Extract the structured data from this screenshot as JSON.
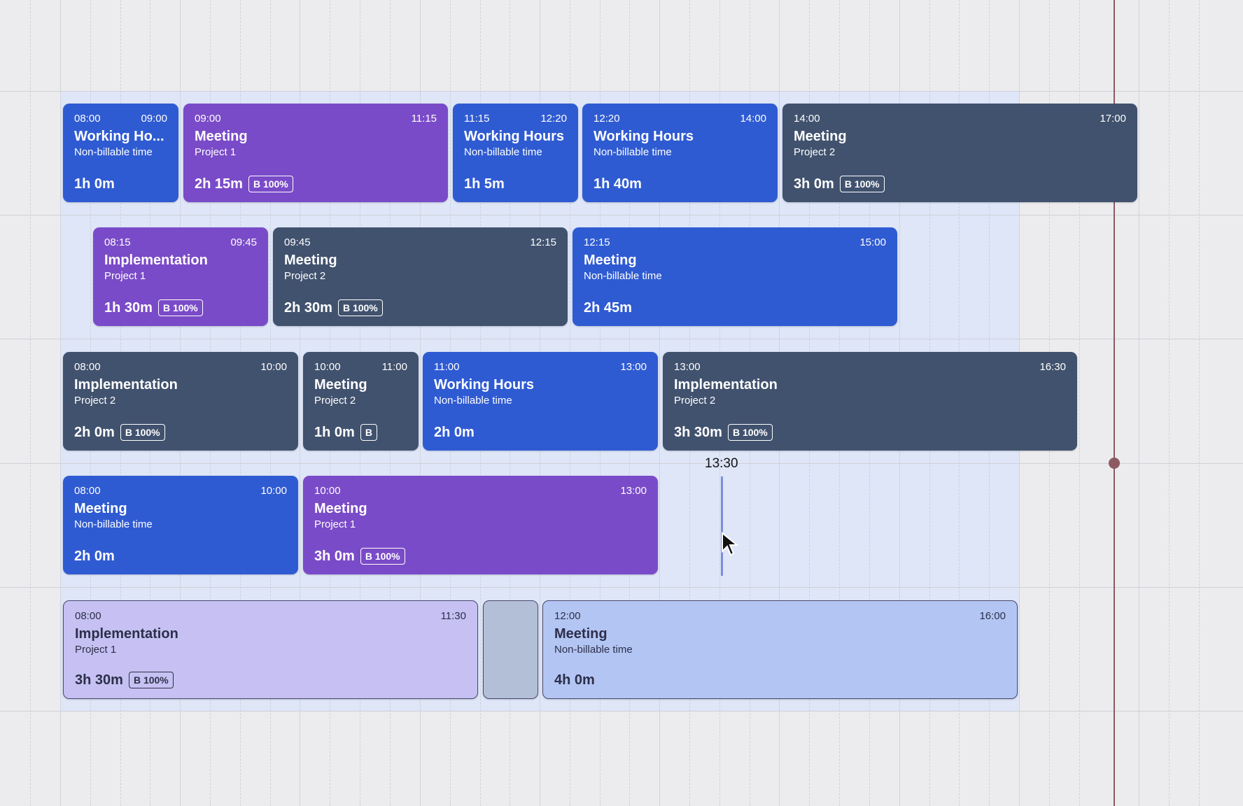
{
  "cursor": {
    "time_label": "13:30"
  },
  "rows": [
    {
      "events": [
        {
          "start": "08:00",
          "end": "09:00",
          "title": "Working Ho...",
          "subtitle": "Non-billable time",
          "duration": "1h 0m",
          "badge": ""
        },
        {
          "start": "09:00",
          "end": "11:15",
          "title": "Meeting",
          "subtitle": "Project 1",
          "duration": "2h 15m",
          "badge": "B 100%"
        },
        {
          "start": "11:15",
          "end": "12:20",
          "title": "Working Hours",
          "subtitle": "Non-billable time",
          "duration": "1h 5m",
          "badge": ""
        },
        {
          "start": "12:20",
          "end": "14:00",
          "title": "Working Hours",
          "subtitle": "Non-billable time",
          "duration": "1h 40m",
          "badge": ""
        },
        {
          "start": "14:00",
          "end": "17:00",
          "title": "Meeting",
          "subtitle": "Project 2",
          "duration": "3h 0m",
          "badge": "B 100%"
        }
      ]
    },
    {
      "events": [
        {
          "start": "08:15",
          "end": "09:45",
          "title": "Implementation",
          "subtitle": "Project 1",
          "duration": "1h 30m",
          "badge": "B 100%"
        },
        {
          "start": "09:45",
          "end": "12:15",
          "title": "Meeting",
          "subtitle": "Project 2",
          "duration": "2h 30m",
          "badge": "B 100%"
        },
        {
          "start": "12:15",
          "end": "15:00",
          "title": "Meeting",
          "subtitle": "Non-billable time",
          "duration": "2h 45m",
          "badge": ""
        }
      ]
    },
    {
      "events": [
        {
          "start": "08:00",
          "end": "10:00",
          "title": "Implementation",
          "subtitle": "Project 2",
          "duration": "2h 0m",
          "badge": "B 100%"
        },
        {
          "start": "10:00",
          "end": "11:00",
          "title": "Meeting",
          "subtitle": "Project 2",
          "duration": "1h 0m",
          "badge": "B"
        },
        {
          "start": "11:00",
          "end": "13:00",
          "title": "Working Hours",
          "subtitle": "Non-billable time",
          "duration": "2h 0m",
          "badge": ""
        },
        {
          "start": "13:00",
          "end": "16:30",
          "title": "Implementation",
          "subtitle": "Project 2",
          "duration": "3h 30m",
          "badge": "B 100%"
        }
      ]
    },
    {
      "events": [
        {
          "start": "08:00",
          "end": "10:00",
          "title": "Meeting",
          "subtitle": "Non-billable time",
          "duration": "2h 0m",
          "badge": ""
        },
        {
          "start": "10:00",
          "end": "13:00",
          "title": "Meeting",
          "subtitle": "Project 1",
          "duration": "3h 0m",
          "badge": "B 100%"
        }
      ]
    },
    {
      "events": [
        {
          "start": "08:00",
          "end": "11:30",
          "title": "Implementation",
          "subtitle": "Project 1",
          "duration": "3h 30m",
          "badge": "B 100%"
        },
        {
          "start": "12:00",
          "end": "16:00",
          "title": "Meeting",
          "subtitle": "Non-billable time",
          "duration": "4h 0m",
          "badge": ""
        }
      ]
    }
  ],
  "colors": {
    "non_billable": "#2f5bd2",
    "project_1": "#7a4bc8",
    "project_2": "#41526e",
    "now_line": "#8d5a62"
  }
}
